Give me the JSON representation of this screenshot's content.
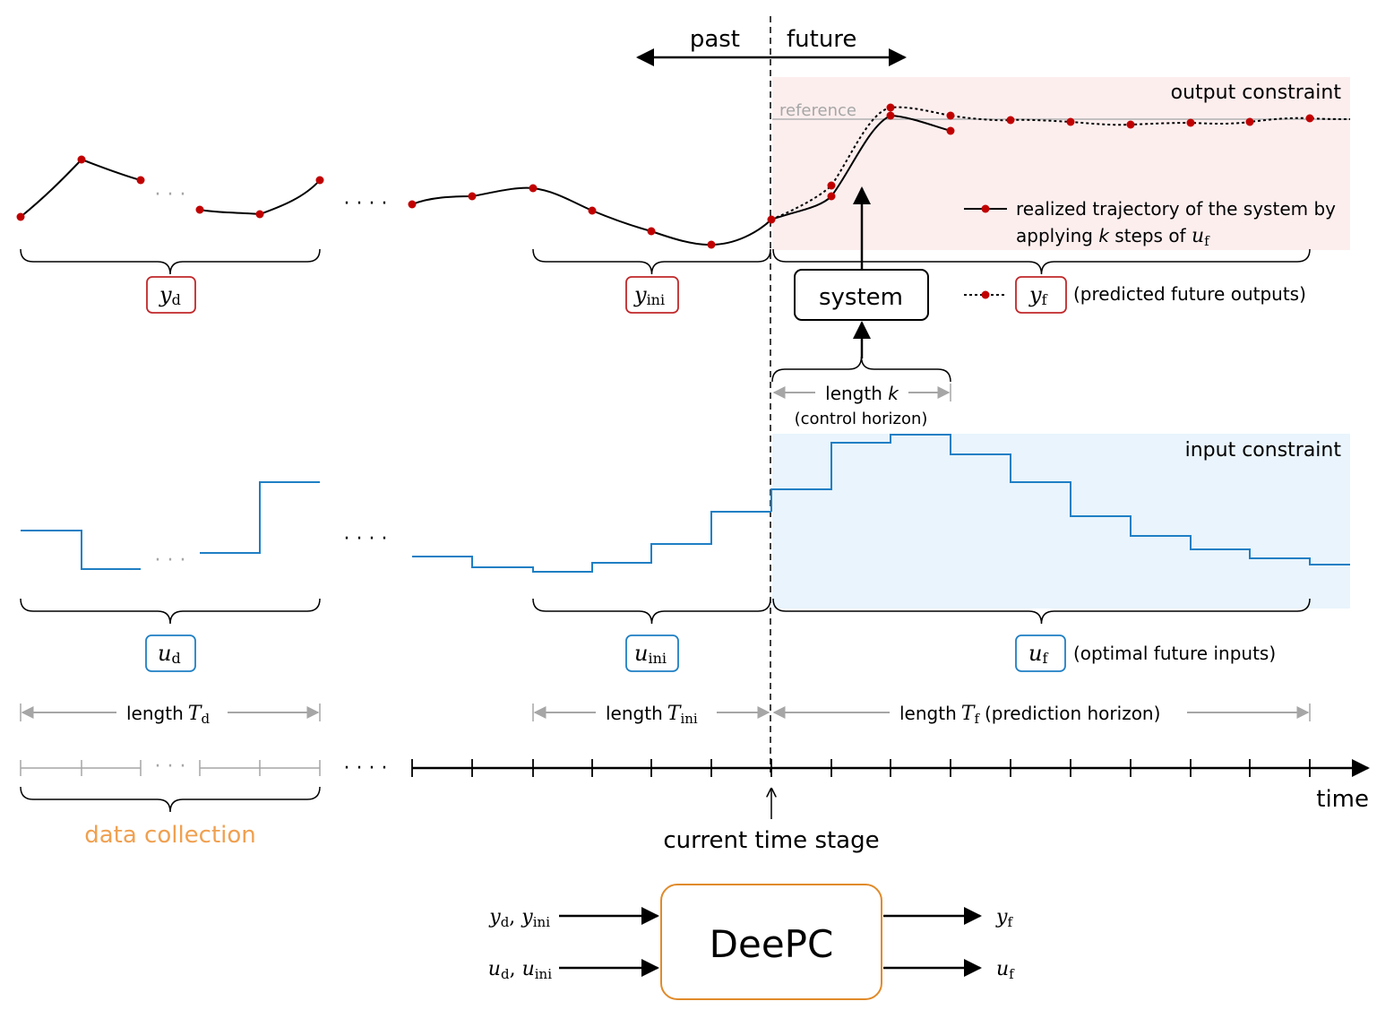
{
  "header": {
    "past": "past",
    "future": "future"
  },
  "reference_label": "reference",
  "output_constraint_label": "output constraint",
  "input_constraint_label": "input constraint",
  "legend": {
    "realized_line1": "realized trajectory of the system by",
    "realized_line2_pre": "applying ",
    "realized_line2_k": "k",
    "realized_line2_mid": " steps of ",
    "predicted_text": "(predicted future outputs)"
  },
  "system_label": "system",
  "control_horizon": {
    "length_text": "length ",
    "k": "k",
    "note": "(control horizon)"
  },
  "labels": {
    "y_d": {
      "base": "y",
      "sub": "d"
    },
    "y_ini": {
      "base": "y",
      "sub": "ini"
    },
    "y_f": {
      "base": "y",
      "sub": "f"
    },
    "u_d": {
      "base": "u",
      "sub": "d"
    },
    "u_ini": {
      "base": "u",
      "sub": "ini"
    },
    "u_f": {
      "base": "u",
      "sub": "f"
    },
    "u_f_note": "(optimal future inputs)"
  },
  "lengths": {
    "length_word": "length",
    "T": "T",
    "d_sub": "d",
    "ini_sub": "ini",
    "f_sub": "f",
    "prediction_note": "(prediction horizon)"
  },
  "axis": {
    "time": "time",
    "current": "current time stage",
    "data_collection": "data collection",
    "dots": "· · · ·",
    "gap_dots": "· · ·"
  },
  "deepc": {
    "title": "DeePC",
    "in1": "y_d, y_ini",
    "in2": "u_d, u_ini",
    "out1": "y_f",
    "out2": "u_f"
  },
  "colors": {
    "red_dot": "#c00000",
    "blue_line": "#1f7fc4",
    "output_fill": "#fdeeee",
    "input_fill": "#e9f4fc",
    "gray": "#a6a6a6",
    "orange": "#f0a050",
    "deepc_border": "#e08a2a",
    "y_box_border": "#c0282a",
    "u_box_border": "#1f7fc4"
  },
  "chart_data": {
    "type": "line",
    "output_series_data": [
      0.0,
      0.55,
      0.3,
      0.05,
      0.0,
      0.3
    ],
    "output_series_ini": [
      0.0,
      0.05,
      0.25,
      -0.1,
      -0.5,
      -0.65,
      -0.35
    ],
    "output_realized_future": [
      -0.35,
      -0.15,
      1.1,
      0.9
    ],
    "output_predicted_future": [
      -0.35,
      0.1,
      1.15,
      1.05,
      1.02,
      1.0,
      0.98,
      1.0,
      1.02,
      1.04
    ],
    "input_series_data": [
      0.6,
      -0.1,
      0.0,
      0.1,
      1.2
    ],
    "input_series_ini": [
      0.0,
      -0.15,
      -0.3,
      -0.4,
      -0.2,
      0.0,
      0.5,
      1.0
    ],
    "input_series_future": [
      1.4,
      2.4,
      2.7,
      2.2,
      1.4,
      0.9,
      0.4,
      0.1,
      -0.15,
      -0.25
    ]
  }
}
